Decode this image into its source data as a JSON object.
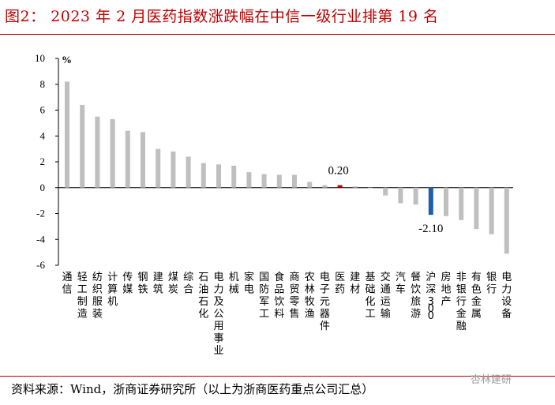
{
  "title": {
    "figure": "图2：",
    "text": "2023 年 2 月医药指数涨跌幅在中信一级行业排第 19 名"
  },
  "source": "资料来源：Wind，浙商证券研究所（以上为浙商医药重点公司汇总）",
  "watermark": "杏林建研",
  "chart_data": {
    "type": "bar",
    "unit_label": "%",
    "ylim": [
      -6,
      10
    ],
    "yticks": [
      10,
      8,
      6,
      4,
      2,
      0,
      -2,
      -4,
      -6
    ],
    "categories": [
      "通信",
      "轻工制造",
      "纺织服装",
      "计算机",
      "传媒",
      "钢铁",
      "建筑",
      "煤炭",
      "综合",
      "石油石化",
      "电力及公用事业",
      "机械",
      "家电",
      "国防军工",
      "食品饮料",
      "商贸零售",
      "农林牧渔",
      "电子元器件",
      "医药",
      "建材",
      "基础化工",
      "交通运输",
      "汽车",
      "餐饮旅游",
      "沪深300",
      "房地产",
      "非银行金融",
      "有色金属",
      "银行",
      "电力设备"
    ],
    "values": [
      8.2,
      6.4,
      5.5,
      5.3,
      4.4,
      4.3,
      3.0,
      2.8,
      2.4,
      1.9,
      1.8,
      1.7,
      1.2,
      1.05,
      1.0,
      1.0,
      0.45,
      0.2,
      0.2,
      0.1,
      0.0,
      -0.6,
      -1.2,
      -1.3,
      -2.1,
      -2.2,
      -2.5,
      -3.2,
      -3.6,
      -5.1
    ],
    "highlight": {
      "医药": "#c00000",
      "沪深300": "#1f5fa8"
    },
    "bar_color": "#bfbfbf",
    "annotations": [
      {
        "category": "医药",
        "text": "0.20"
      },
      {
        "category": "沪深300",
        "text": "-2.10"
      }
    ]
  }
}
